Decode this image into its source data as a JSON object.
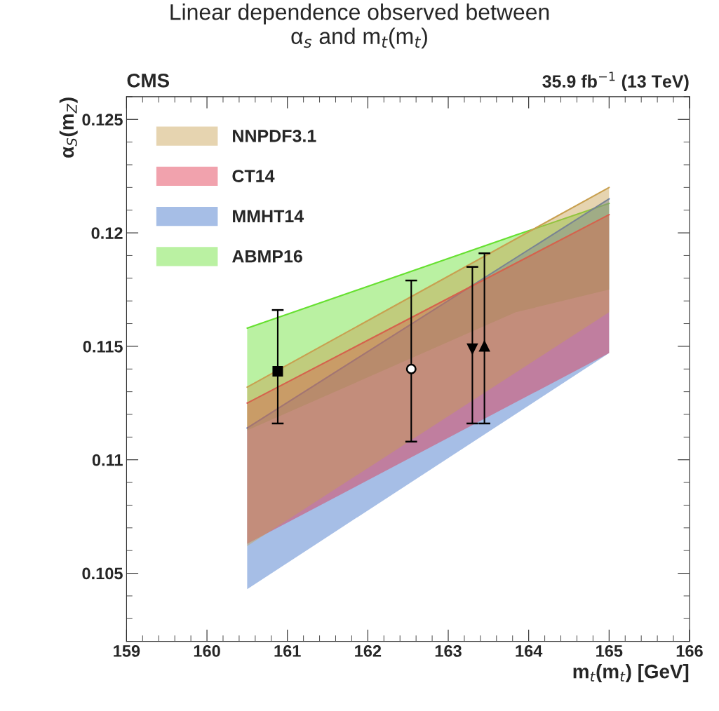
{
  "chart_data": {
    "type": "line",
    "title": "Linear dependence observed between\nα$_{s}$ and m$_{t}$(m$_{t}$)",
    "xlabel": "m$_{t}$(m$_{t}$) [GeV]",
    "ylabel": "α$_{S}$(m$_{Z}$)",
    "annotations": [
      "CMS",
      "35.9 fb$^{−1}$ (13 TeV)"
    ],
    "xlim": [
      159,
      166
    ],
    "xticks": [
      159,
      160,
      161,
      162,
      163,
      164,
      165,
      166
    ],
    "ylim": [
      0.102,
      0.126
    ],
    "yticks": [
      0.105,
      0.11,
      0.115,
      0.12,
      0.125
    ],
    "grid": false,
    "legend": "top left",
    "series": [
      {
        "name": "NNPDF3.1",
        "color": "#c8a050",
        "x": [
          160.5,
          165
        ],
        "values": [
          0.1132,
          0.122
        ],
        "lower": [
          0.1062,
          0.1165
        ],
        "upper": [
          0.1132,
          0.122
        ]
      },
      {
        "name": "CT14",
        "color": "#e0304a",
        "x": [
          160.5,
          165
        ],
        "values": [
          0.1125,
          0.1208
        ],
        "lower": [
          0.1063,
          0.1147
        ],
        "upper": [
          0.1125,
          0.1208
        ]
      },
      {
        "name": "MMHT14",
        "color": "#3a6ec8",
        "x": [
          160.5,
          165
        ],
        "values": [
          0.1114,
          0.1215
        ],
        "lower": [
          0.1043,
          0.1147
        ],
        "upper": [
          0.1114,
          0.1215
        ]
      },
      {
        "name": "ABMP16",
        "color": "#66e030",
        "x": [
          160.5,
          163.84,
          165
        ],
        "values": [
          0.1158,
          0.1199,
          0.1213
        ],
        "lower": [
          0.1113,
          0.1165,
          0.1175
        ],
        "upper": [
          0.1158,
          0.1199,
          0.1213
        ]
      },
      {
        "type": "scatter",
        "color": "#000000",
        "marker": "circle",
        "x": [
          162.54
        ],
        "values": [
          0.114
        ],
        "errors": [
          [
            0.1108,
            0.1179
          ]
        ]
      },
      {
        "type": "scatter",
        "color": "#000000",
        "marker": "triangle_down",
        "x": [
          163.3
        ],
        "values": [
          0.1149
        ],
        "errors": [
          [
            0.1116,
            0.1185
          ]
        ]
      },
      {
        "type": "scatter",
        "color": "#000000",
        "marker": "triangle",
        "x": [
          163.45
        ],
        "values": [
          0.115
        ],
        "errors": [
          [
            0.1116,
            0.1191
          ]
        ]
      },
      {
        "type": "scatter",
        "color": "#000000",
        "marker": "square",
        "x": [
          160.88
        ],
        "values": [
          0.1139
        ],
        "errors": [
          [
            0.1116,
            0.1166
          ]
        ]
      }
    ]
  }
}
